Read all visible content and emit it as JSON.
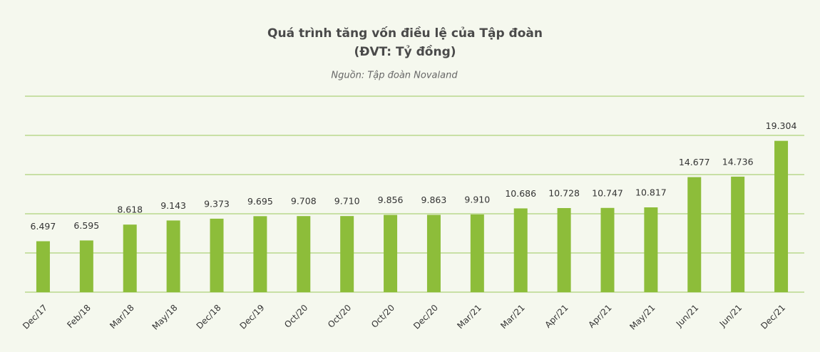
{
  "chart_data": {
    "type": "bar",
    "title": "Quá trình tăng vốn điều lệ của Tập đoàn",
    "subtitle": "(ĐVT: Tỷ đồng)",
    "source": "Nguồn: Tập đoàn Novaland",
    "categories": [
      "Dec/17",
      "Feb/18",
      "Mar/18",
      "May/18",
      "Dec/18",
      "Dec/19",
      "Oct/20",
      "Oct/20",
      "Oct/20",
      "Dec/20",
      "Mar/21",
      "Mar/21",
      "Apr/21",
      "Apr/21",
      "May/21",
      "Jun/21",
      "Jun/21",
      "Dec/21"
    ],
    "values": [
      6497,
      6595,
      8618,
      9143,
      9373,
      9695,
      9708,
      9710,
      9856,
      9863,
      9910,
      10686,
      10728,
      10747,
      10817,
      14677,
      14736,
      19304
    ],
    "value_labels": [
      "6.497",
      "6.595",
      "8.618",
      "9.143",
      "9.373",
      "9.695",
      "9.708",
      "9.710",
      "9.856",
      "9.863",
      "9.910",
      "10.686",
      "10.728",
      "10.747",
      "10.817",
      "14.677",
      "14.736",
      "19.304"
    ],
    "color": "#8dbd3a",
    "ylim": [
      0,
      25000
    ],
    "yticks": [
      0,
      5000,
      10000,
      15000,
      20000,
      25000
    ],
    "grid": true
  }
}
